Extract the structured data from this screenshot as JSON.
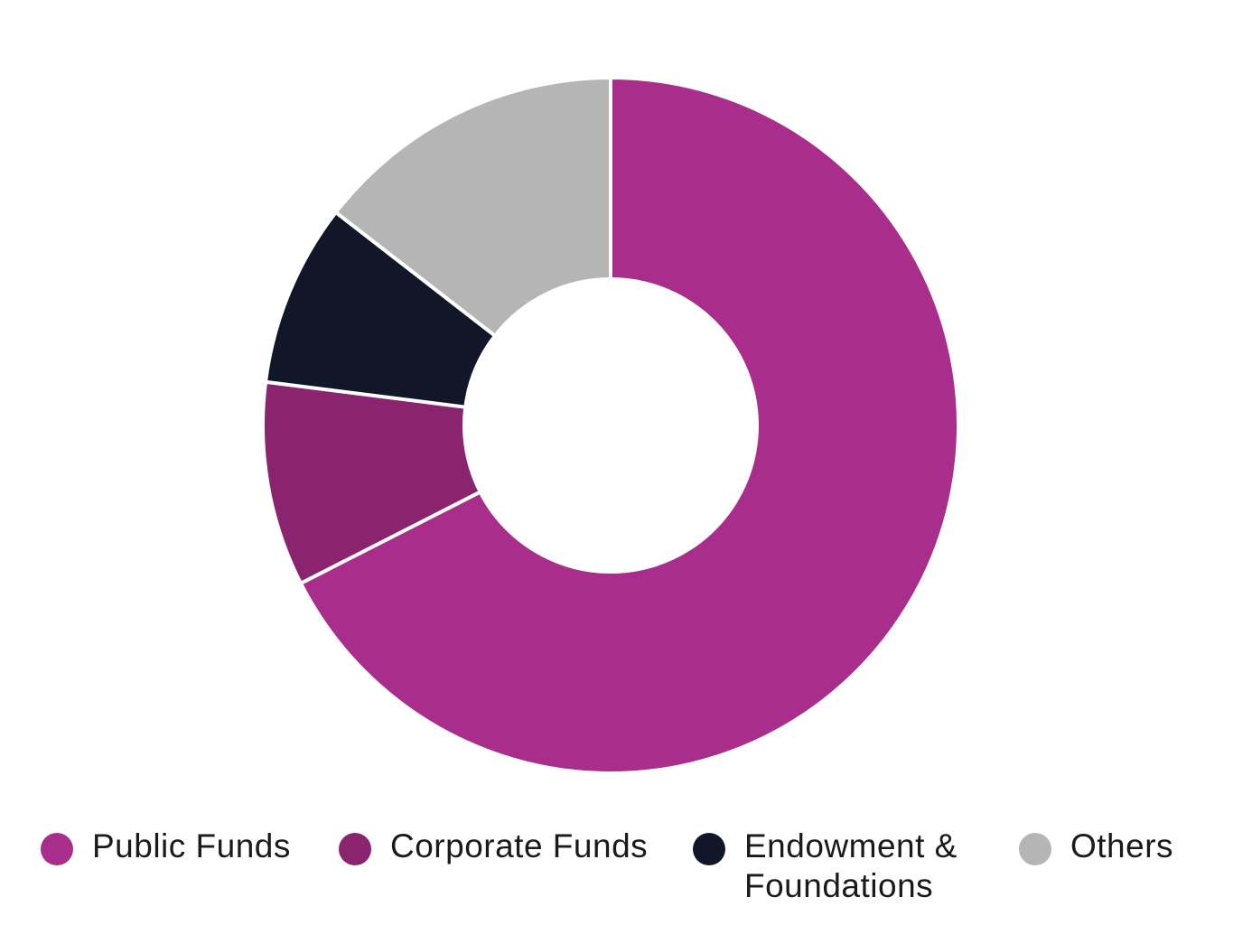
{
  "chart_data": {
    "type": "pie",
    "variant": "donut",
    "title": "",
    "slices": [
      {
        "label": "Public Funds",
        "value": 67.5,
        "color": "#a92d8a"
      },
      {
        "label": "Corporate Funds",
        "value": 9.5,
        "color": "#8a246f"
      },
      {
        "label": "Endowment & Foundations",
        "value": 8.5,
        "color": "#111628"
      },
      {
        "label": "Others",
        "value": 14.5,
        "color": "#b4b5b4"
      }
    ],
    "legend_position": "bottom",
    "slice_border_color": "#ffffff"
  },
  "legend": {
    "items": [
      {
        "label": "Public Funds",
        "color": "#a92d8a"
      },
      {
        "label": "Corporate Funds",
        "color": "#8a246f"
      },
      {
        "label": "Endowment & Foundations",
        "color": "#111628"
      },
      {
        "label": "Others",
        "color": "#b4b5b4"
      }
    ]
  }
}
